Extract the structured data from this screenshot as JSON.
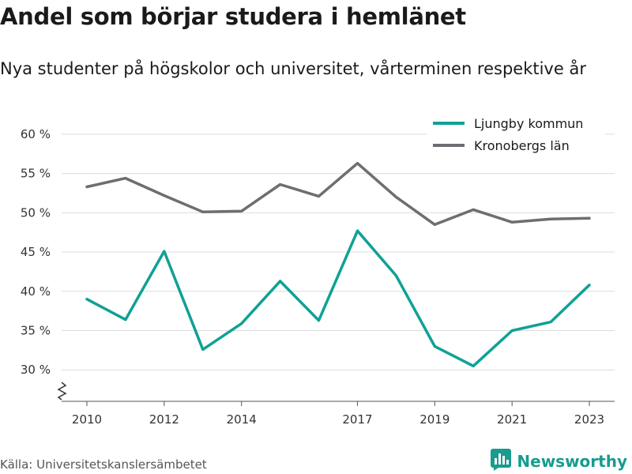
{
  "header": {
    "title": "Andel som börjar studera i hemlänet",
    "subtitle": "Nya studenter på högskolor och universitet, vårterminen respektive år"
  },
  "chart_data": {
    "type": "line",
    "x": [
      2010,
      2011,
      2012,
      2013,
      2014,
      2015,
      2016,
      2017,
      2018,
      2019,
      2020,
      2021,
      2022,
      2023
    ],
    "x_tick_labels": [
      "2010",
      "2012",
      "2014",
      "2017",
      "2019",
      "2021",
      "2023"
    ],
    "y_tick_labels": [
      "60 %",
      "55 %",
      "50 %",
      "45 %",
      "40 %",
      "35 %",
      "30 %"
    ],
    "y_ticks": [
      60,
      55,
      50,
      45,
      40,
      35,
      30
    ],
    "ylim": [
      26,
      62
    ],
    "y_axis_break": true,
    "grid": true,
    "legend_position": "top-right",
    "series": [
      {
        "name": "Ljungby kommun",
        "color": "#0fa196",
        "values": [
          39.0,
          36.4,
          45.1,
          32.6,
          35.9,
          41.3,
          36.3,
          47.7,
          42.0,
          33.0,
          30.5,
          35.0,
          36.1,
          40.8
        ]
      },
      {
        "name": "Kronobergs län",
        "color": "#6e6d72",
        "values": [
          53.3,
          54.4,
          52.2,
          50.1,
          50.2,
          53.6,
          52.1,
          56.3,
          52.0,
          48.5,
          50.4,
          48.8,
          49.2,
          49.3
        ]
      }
    ]
  },
  "footer": {
    "source": "Källa: Universitetskanslersämbetet",
    "brand": "Newsworthy",
    "brand_color": "#179c8e",
    "brand_icon": "bar-chart-logo-icon"
  }
}
